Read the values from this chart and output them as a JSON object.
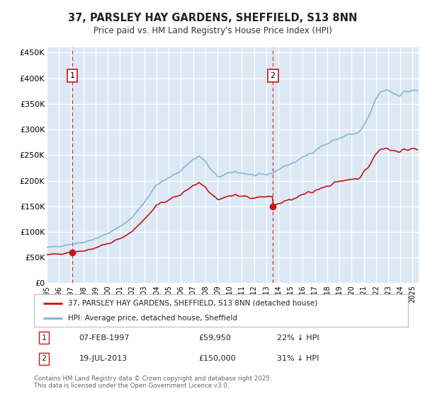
{
  "title": "37, PARSLEY HAY GARDENS, SHEFFIELD, S13 8NN",
  "subtitle": "Price paid vs. HM Land Registry's House Price Index (HPI)",
  "hpi_color": "#7bafd4",
  "price_color": "#cc1111",
  "plot_bg": "#dce9f5",
  "ylim": [
    0,
    460000
  ],
  "yticks": [
    0,
    50000,
    100000,
    150000,
    200000,
    250000,
    300000,
    350000,
    400000,
    450000
  ],
  "sale1_price": 59950,
  "sale1_label": "1",
  "sale1_year": 1997.09,
  "sale2_price": 150000,
  "sale2_label": "2",
  "sale2_year": 2013.54,
  "legend_house": "37, PARSLEY HAY GARDENS, SHEFFIELD, S13 8NN (detached house)",
  "legend_hpi": "HPI: Average price, detached house, Sheffield",
  "note1_num": "1",
  "note1_date": "07-FEB-1997",
  "note1_price": "£59,950",
  "note1_hpi": "22% ↓ HPI",
  "note2_num": "2",
  "note2_date": "19-JUL-2013",
  "note2_price": "£150,000",
  "note2_hpi": "31% ↓ HPI",
  "footer": "Contains HM Land Registry data © Crown copyright and database right 2025.\nThis data is licensed under the Open Government Licence v3.0.",
  "xmin": 1995.0,
  "xmax": 2025.5
}
